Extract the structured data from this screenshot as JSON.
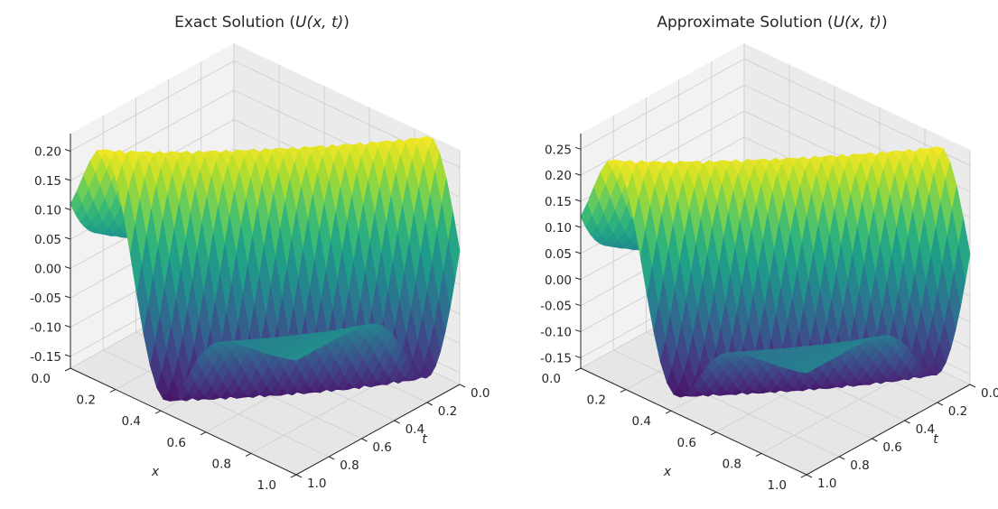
{
  "chart_data": [
    {
      "type": "surface3d",
      "title": "Exact Solution (U(x, t))",
      "title_parts": {
        "prefix": "Exact Solution (",
        "func": "U",
        "args": "(x, t)",
        "suffix": ")"
      },
      "xlabel": "x",
      "ylabel": "t",
      "x_ticks": [
        "0.0",
        "0.2",
        "0.4",
        "0.6",
        "0.8",
        "1.0"
      ],
      "t_ticks": [
        "0.0",
        "0.2",
        "0.4",
        "0.6",
        "0.8",
        "1.0"
      ],
      "z_ticks": [
        "0.20",
        "0.15",
        "0.10",
        "0.05",
        "0.00",
        "-0.05",
        "-0.10",
        "-0.15"
      ],
      "z_tick_values": [
        0.2,
        0.15,
        0.1,
        0.05,
        0.0,
        -0.05,
        -0.1,
        -0.15
      ],
      "xlim": [
        0,
        1
      ],
      "tlim": [
        0,
        1
      ],
      "zlim": [
        -0.17,
        0.23
      ],
      "colormap": "viridis",
      "grid": true,
      "surface": {
        "peak": 0.23,
        "trough": -0.17,
        "edge_value": 0.03
      }
    },
    {
      "type": "surface3d",
      "title": "Approximate Solution (U(x, t))",
      "title_parts": {
        "prefix": "Approximate Solution (",
        "func": "U",
        "args": "(x, t)",
        "suffix": ")"
      },
      "xlabel": "x",
      "ylabel": "t",
      "x_ticks": [
        "0.0",
        "0.2",
        "0.4",
        "0.6",
        "0.8",
        "1.0"
      ],
      "t_ticks": [
        "0.0",
        "0.2",
        "0.4",
        "0.6",
        "0.8",
        "1.0"
      ],
      "z_ticks": [
        "0.25",
        "0.20",
        "0.15",
        "0.10",
        "0.05",
        "0.00",
        "-0.05",
        "-0.10",
        "-0.15"
      ],
      "z_tick_values": [
        0.25,
        0.2,
        0.15,
        0.1,
        0.05,
        0.0,
        -0.05,
        -0.1,
        -0.15
      ],
      "xlim": [
        0,
        1
      ],
      "tlim": [
        0,
        1
      ],
      "zlim": [
        -0.17,
        0.28
      ],
      "colormap": "viridis",
      "grid": true,
      "surface": {
        "peak": 0.26,
        "trough": -0.16,
        "edge_value": 0.03
      }
    }
  ],
  "colors": {
    "pane_left": "#f2f2f2",
    "pane_back": "#ebebeb",
    "pane_floor": "#e6e6e6",
    "grid": "#d0d0d0",
    "axis": "#262626"
  }
}
